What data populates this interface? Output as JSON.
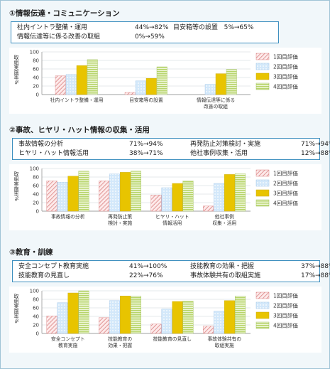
{
  "sections": [
    {
      "title": "①情報伝達・コミュニケーション",
      "summary": [
        {
          "label": "社内イントラ整備・運用",
          "value": "44%→82%"
        },
        {
          "label": "目安箱等の設置",
          "value": "5%→65%"
        },
        {
          "label": "情報伝達等に係る改善の取組",
          "value": "0%→59%"
        }
      ]
    },
    {
      "title": "②事故、ヒヤリ・ハット情報の収集・活用",
      "summary": [
        {
          "label": "事故情報の分析",
          "value": "71%→94%"
        },
        {
          "label": "再発防止対策検討・実施",
          "value": "71%→94%"
        },
        {
          "label": "ヒヤリ・ハット情報活用",
          "value": "38%→71%"
        },
        {
          "label": "他社事例収集・活用",
          "value": "12%→88%"
        }
      ]
    },
    {
      "title": "③教育・訓練",
      "summary": [
        {
          "label": "安全コンセプト教育実施",
          "value": "41%→100%"
        },
        {
          "label": "技能教育の効果・把握",
          "value": "37%→88%"
        },
        {
          "label": "技能教育の見直し",
          "value": "22%→76%"
        },
        {
          "label": "事故体験共有の取組実施",
          "value": "17%→88%"
        }
      ]
    }
  ],
  "chart_data": [
    {
      "type": "bar",
      "ylabel": "取組実施率%",
      "ylim": [
        0,
        100
      ],
      "yticks": [
        "0",
        "20",
        "40",
        "60",
        "80",
        "100"
      ],
      "categories": [
        [
          "社内イントラ整備・運用"
        ],
        [
          "目安箱等の設置"
        ],
        [
          "情報伝達等に係る",
          "改善の取組"
        ]
      ],
      "series": [
        {
          "name": "1回目評価",
          "values": [
            44,
            5,
            0
          ]
        },
        {
          "name": "2回目評価",
          "values": [
            47,
            32,
            24
          ]
        },
        {
          "name": "3回目評価",
          "values": [
            68,
            38,
            49
          ]
        },
        {
          "name": "4回目評価",
          "values": [
            82,
            65,
            59
          ]
        }
      ]
    },
    {
      "type": "bar",
      "ylabel": "取組実施率%",
      "ylim": [
        0,
        100
      ],
      "yticks": [
        "0",
        "20",
        "40",
        "60",
        "80",
        "100"
      ],
      "categories": [
        [
          "事故情報の分析"
        ],
        [
          "再発防止策",
          "検討・実施"
        ],
        [
          "ヒヤリ・ハット",
          "情報活用"
        ],
        [
          "他社事例",
          "収集・活用"
        ]
      ],
      "series": [
        {
          "name": "1回目評価",
          "values": [
            71,
            71,
            38,
            12
          ]
        },
        {
          "name": "2回目評価",
          "values": [
            68,
            87,
            55,
            65
          ]
        },
        {
          "name": "3回目評価",
          "values": [
            82,
            91,
            65,
            86
          ]
        },
        {
          "name": "4回目評価",
          "values": [
            94,
            94,
            71,
            88
          ]
        }
      ]
    },
    {
      "type": "bar",
      "ylabel": "取組実施率%",
      "ylim": [
        0,
        100
      ],
      "yticks": [
        "0",
        "20",
        "40",
        "60",
        "80",
        "100"
      ],
      "categories": [
        [
          "安全コンセプト",
          "教育実施"
        ],
        [
          "技能教育の",
          "効果・把握"
        ],
        [
          "技能教育の見直し"
        ],
        [
          "事故体験共有の",
          "取組実施"
        ]
      ],
      "series": [
        {
          "name": "1回目評価",
          "values": [
            41,
            37,
            22,
            17
          ]
        },
        {
          "name": "2回目評価",
          "values": [
            72,
            77,
            57,
            52
          ]
        },
        {
          "name": "3回目評価",
          "values": [
            95,
            88,
            75,
            77
          ]
        },
        {
          "name": "4回目評価",
          "values": [
            100,
            88,
            76,
            88
          ]
        }
      ]
    }
  ]
}
